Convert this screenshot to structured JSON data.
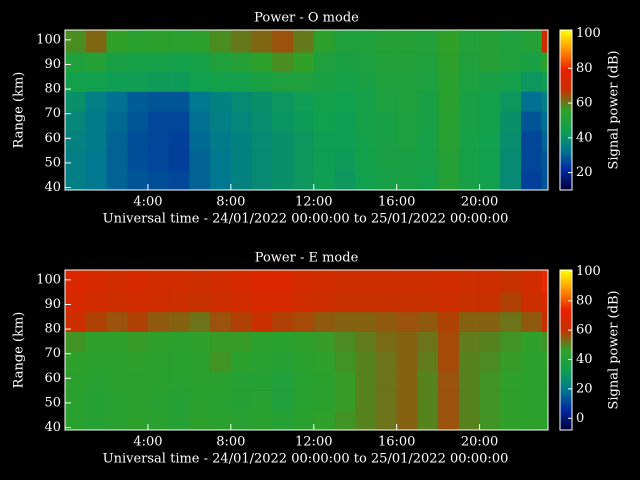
{
  "chart_data": [
    {
      "type": "heatmap",
      "title": "Power - O mode",
      "xlabel": "Universal time - 24/01/2022 00:00:00 to 25/01/2022 00:00:00",
      "ylabel": "Range (km)",
      "colorbar_label": "Signal power (dB)",
      "xlim": [
        0,
        23.3
      ],
      "ylim": [
        39,
        104
      ],
      "zlim": [
        10,
        102
      ],
      "xticks": [
        {
          "value": 4,
          "label": "4:00"
        },
        {
          "value": 8,
          "label": "8:00"
        },
        {
          "value": 12,
          "label": "12:00"
        },
        {
          "value": 16,
          "label": "16:00"
        },
        {
          "value": 20,
          "label": "20:00"
        }
      ],
      "yticks": [
        40,
        50,
        60,
        70,
        80,
        90,
        100
      ],
      "zticks": [
        20,
        40,
        60,
        80,
        100
      ],
      "colormap": [
        "#000038",
        "#0028a0",
        "#007890",
        "#10a050",
        "#30a028",
        "#c83000",
        "#e82000",
        "#ff9000",
        "#ffff00"
      ],
      "x_edges": [
        0,
        1,
        2,
        3,
        4,
        5,
        6,
        7,
        8,
        9,
        10,
        11,
        12,
        13,
        14,
        15,
        16,
        17,
        18,
        19,
        20,
        21,
        22,
        23,
        23.3
      ],
      "y_edges": [
        39,
        47,
        55,
        63,
        71,
        79,
        87,
        95,
        104
      ],
      "z": [
        [
          35,
          33,
          30,
          28,
          27,
          26,
          30,
          33,
          36,
          38,
          40,
          42,
          44,
          42,
          45,
          47,
          48,
          46,
          52,
          47,
          45,
          38,
          25,
          28
        ],
        [
          35,
          33,
          30,
          27,
          26,
          25,
          30,
          33,
          36,
          38,
          40,
          42,
          44,
          43,
          46,
          48,
          48,
          47,
          52,
          47,
          45,
          38,
          26,
          28
        ],
        [
          36,
          34,
          30,
          27,
          26,
          25,
          31,
          34,
          36,
          38,
          40,
          42,
          44,
          44,
          46,
          48,
          49,
          47,
          53,
          47,
          45,
          39,
          26,
          30
        ],
        [
          37,
          34,
          31,
          28,
          26,
          26,
          32,
          35,
          37,
          39,
          41,
          43,
          45,
          44,
          47,
          48,
          49,
          48,
          53,
          48,
          46,
          40,
          28,
          32
        ],
        [
          40,
          35,
          32,
          29,
          28,
          28,
          33,
          36,
          38,
          40,
          42,
          44,
          46,
          45,
          47,
          49,
          50,
          48,
          54,
          48,
          46,
          42,
          32,
          35
        ],
        [
          46,
          45,
          44,
          44,
          43,
          43,
          45,
          46,
          46,
          48,
          50,
          50,
          48,
          47,
          48,
          50,
          50,
          49,
          54,
          49,
          48,
          46,
          42,
          44
        ],
        [
          50,
          52,
          48,
          47,
          47,
          46,
          47,
          50,
          52,
          55,
          58,
          56,
          50,
          48,
          49,
          51,
          51,
          50,
          55,
          50,
          52,
          50,
          48,
          55
        ],
        [
          58,
          62,
          56,
          54,
          55,
          54,
          55,
          58,
          60,
          62,
          64,
          60,
          55,
          50,
          50,
          52,
          52,
          51,
          56,
          51,
          52,
          50,
          52,
          70
        ]
      ]
    },
    {
      "type": "heatmap",
      "title": "Power - E mode",
      "xlabel": "Universal time - 24/01/2022 00:00:00 to 25/01/2022 00:00:00",
      "ylabel": "Range (km)",
      "colorbar_label": "Signal power (dB)",
      "xlim": [
        0,
        23.3
      ],
      "ylim": [
        39,
        104
      ],
      "zlim": [
        -8,
        101
      ],
      "xticks": [
        {
          "value": 4,
          "label": "4:00"
        },
        {
          "value": 8,
          "label": "8:00"
        },
        {
          "value": 12,
          "label": "12:00"
        },
        {
          "value": 16,
          "label": "16:00"
        },
        {
          "value": 20,
          "label": "20:00"
        }
      ],
      "yticks": [
        40,
        50,
        60,
        70,
        80,
        90,
        100
      ],
      "zticks": [
        0,
        20,
        40,
        60,
        80,
        100
      ],
      "colormap": [
        "#000038",
        "#0028a0",
        "#007890",
        "#10a050",
        "#30a028",
        "#c83000",
        "#e82000",
        "#ff9000",
        "#ffff00"
      ],
      "x_edges": [
        0,
        1,
        2,
        3,
        4,
        5,
        6,
        7,
        8,
        9,
        10,
        11,
        12,
        13,
        14,
        15,
        16,
        17,
        18,
        19,
        20,
        21,
        22,
        23,
        23.3
      ],
      "y_edges": [
        39,
        47,
        55,
        63,
        71,
        79,
        87,
        95,
        104
      ],
      "z": [
        [
          44,
          42,
          43,
          45,
          44,
          42,
          45,
          44,
          43,
          44,
          42,
          44,
          46,
          48,
          50,
          52,
          54,
          50,
          56,
          50,
          48,
          46,
          45,
          44
        ],
        [
          44,
          42,
          43,
          45,
          43,
          42,
          44,
          43,
          42,
          43,
          40,
          43,
          45,
          47,
          50,
          52,
          54,
          50,
          56,
          50,
          48,
          46,
          44,
          44
        ],
        [
          45,
          43,
          44,
          45,
          44,
          43,
          44,
          44,
          42,
          42,
          40,
          43,
          45,
          47,
          50,
          52,
          54,
          50,
          56,
          50,
          48,
          46,
          44,
          45
        ],
        [
          46,
          44,
          45,
          46,
          45,
          44,
          45,
          48,
          45,
          43,
          42,
          44,
          46,
          48,
          50,
          52,
          54,
          51,
          57,
          50,
          49,
          47,
          45,
          46
        ],
        [
          48,
          46,
          46,
          47,
          46,
          45,
          46,
          47,
          47,
          45,
          44,
          46,
          47,
          49,
          51,
          53,
          54,
          52,
          57,
          51,
          50,
          48,
          46,
          48
        ],
        [
          62,
          58,
          56,
          58,
          55,
          54,
          52,
          56,
          58,
          60,
          58,
          57,
          55,
          54,
          54,
          55,
          56,
          55,
          58,
          54,
          54,
          52,
          55,
          60
        ],
        [
          66,
          64,
          62,
          64,
          63,
          62,
          60,
          62,
          64,
          66,
          66,
          63,
          62,
          60,
          60,
          60,
          60,
          60,
          62,
          60,
          60,
          58,
          62,
          66
        ],
        [
          68,
          66,
          64,
          66,
          64,
          64,
          62,
          64,
          66,
          68,
          68,
          65,
          64,
          62,
          62,
          62,
          62,
          62,
          64,
          62,
          62,
          60,
          64,
          75
        ]
      ]
    }
  ]
}
